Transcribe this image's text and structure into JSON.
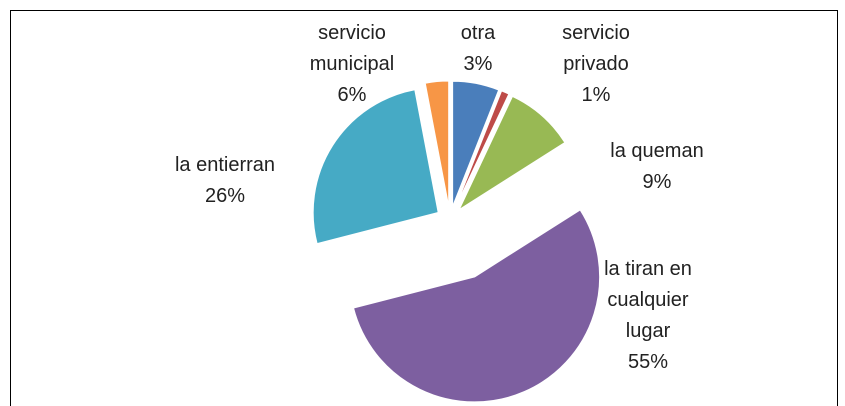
{
  "chart_data": {
    "type": "pie",
    "categories": [
      "servicio municipal",
      "servicio privado",
      "la queman",
      "la tiran en cualquier lugar",
      "la entierran",
      "otra"
    ],
    "values": [
      6,
      1,
      9,
      55,
      26,
      3
    ],
    "value_labels": [
      "6%",
      "1%",
      "9%",
      "55%",
      "26%",
      "3%"
    ],
    "colors": [
      "#4a7ebb",
      "#be4b48",
      "#98b954",
      "#7d5fa0",
      "#46aac5",
      "#f79646"
    ]
  }
}
